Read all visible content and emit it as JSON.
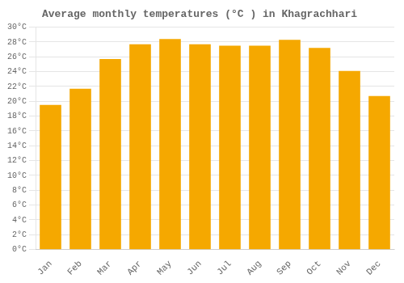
{
  "chart_data": {
    "type": "bar",
    "title": "Average monthly temperatures (°C ) in Khagrachhari",
    "categories": [
      "Jan",
      "Feb",
      "Mar",
      "Apr",
      "May",
      "Jun",
      "Jul",
      "Aug",
      "Sep",
      "Oct",
      "Nov",
      "Dec"
    ],
    "values": [
      19.5,
      21.7,
      25.7,
      27.7,
      28.4,
      27.7,
      27.5,
      27.5,
      28.3,
      27.2,
      24.1,
      20.7
    ],
    "color": "#F5A800",
    "ylim": [
      0,
      30
    ],
    "yticks": [
      {
        "value": 0,
        "label": "0°C"
      },
      {
        "value": 2,
        "label": "2°C"
      },
      {
        "value": 4,
        "label": "4°C"
      },
      {
        "value": 6,
        "label": "6°C"
      },
      {
        "value": 8,
        "label": "8°C"
      },
      {
        "value": 10,
        "label": "10°C"
      },
      {
        "value": 12,
        "label": "12°C"
      },
      {
        "value": 14,
        "label": "14°C"
      },
      {
        "value": 16,
        "label": "16°C"
      },
      {
        "value": 18,
        "label": "18°C"
      },
      {
        "value": 20,
        "label": "20°C"
      },
      {
        "value": 22,
        "label": "22°C"
      },
      {
        "value": 24,
        "label": "24°C"
      },
      {
        "value": 26,
        "label": "26°C"
      },
      {
        "value": 28,
        "label": "28°C"
      },
      {
        "value": 30,
        "label": "30°C"
      }
    ],
    "grid": true
  }
}
